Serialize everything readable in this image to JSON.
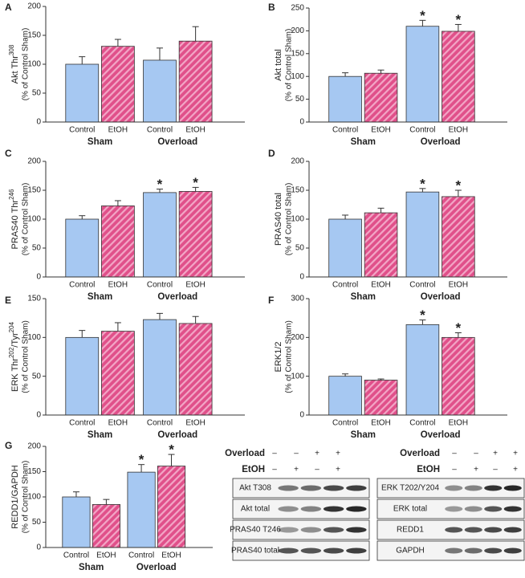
{
  "chart_data": [
    {
      "type": "bar",
      "panel": "A",
      "ylabel": [
        {
          "text": "Akt Thr"
        },
        {
          "text": "308",
          "sup": true
        }
      ],
      "ylabel2": "(% of Control Sham)",
      "categories": [
        "Control",
        "EtOH",
        "Control",
        "EtOH"
      ],
      "groups": [
        "Sham",
        "Overload"
      ],
      "values": [
        100,
        131,
        107,
        140
      ],
      "errors": [
        13,
        12,
        21,
        25
      ],
      "markers": [
        null,
        null,
        null,
        null
      ],
      "colors": [
        "#a6c8f2",
        "#e0508a"
      ],
      "ylim": [
        0,
        200
      ],
      "yticks": [
        0,
        50,
        100,
        150,
        200
      ]
    },
    {
      "type": "bar",
      "panel": "B",
      "ylabel": [
        {
          "text": "Akt  total"
        }
      ],
      "ylabel2": "(% of Control Sham)",
      "categories": [
        "Control",
        "EtOH",
        "Control",
        "EtOH"
      ],
      "groups": [
        "Sham",
        "Overload"
      ],
      "values": [
        100,
        107,
        210,
        199
      ],
      "errors": [
        8,
        7,
        13,
        15
      ],
      "markers": [
        null,
        null,
        "*",
        "*"
      ],
      "colors": [
        "#a6c8f2",
        "#e0508a"
      ],
      "ylim": [
        0,
        250
      ],
      "yticks": [
        0,
        50,
        100,
        150,
        200,
        250
      ]
    },
    {
      "type": "bar",
      "panel": "C",
      "ylabel": [
        {
          "text": "PRAS40 Thr"
        },
        {
          "text": "246",
          "sup": true
        }
      ],
      "ylabel2": "(% of Control Sham)",
      "categories": [
        "Control",
        "EtOH",
        "Control",
        "EtOH"
      ],
      "groups": [
        "Sham",
        "Overload"
      ],
      "values": [
        100,
        123,
        146,
        148
      ],
      "errors": [
        6,
        9,
        6,
        7
      ],
      "markers": [
        null,
        null,
        "*",
        "*"
      ],
      "colors": [
        "#a6c8f2",
        "#e0508a"
      ],
      "ylim": [
        0,
        200
      ],
      "yticks": [
        0,
        50,
        100,
        150,
        200
      ]
    },
    {
      "type": "bar",
      "panel": "D",
      "ylabel": [
        {
          "text": "PRAS40 total"
        }
      ],
      "ylabel2": "(% of Control Sham)",
      "categories": [
        "Control",
        "EtOH",
        "Control",
        "EtOH"
      ],
      "groups": [
        "Sham",
        "Overload"
      ],
      "values": [
        100,
        111,
        147,
        139
      ],
      "errors": [
        7,
        8,
        6,
        11
      ],
      "markers": [
        null,
        null,
        "*",
        "*"
      ],
      "colors": [
        "#a6c8f2",
        "#e0508a"
      ],
      "ylim": [
        0,
        200
      ],
      "yticks": [
        0,
        50,
        100,
        150,
        200
      ]
    },
    {
      "type": "bar",
      "panel": "E",
      "ylabel": [
        {
          "text": "ERK Thr"
        },
        {
          "text": "202",
          "sup": true
        },
        {
          "text": "/Tyr"
        },
        {
          "text": "204",
          "sup": true
        }
      ],
      "ylabel2": "(% of Control Sham)",
      "categories": [
        "Control",
        "EtOH",
        "Control",
        "EtOH"
      ],
      "groups": [
        "Sham",
        "Overload"
      ],
      "values": [
        100,
        108,
        123,
        118
      ],
      "errors": [
        9,
        11,
        8,
        9
      ],
      "markers": [
        null,
        null,
        null,
        null
      ],
      "colors": [
        "#a6c8f2",
        "#e0508a"
      ],
      "ylim": [
        0,
        150
      ],
      "yticks": [
        0,
        50,
        100,
        150
      ]
    },
    {
      "type": "bar",
      "panel": "F",
      "ylabel": [
        {
          "text": "ERK1/2"
        }
      ],
      "ylabel2": "(% of Control Sham)",
      "categories": [
        "Control",
        "EtOH",
        "Control",
        "EtOH"
      ],
      "groups": [
        "Sham",
        "Overload"
      ],
      "values": [
        100,
        90,
        233,
        200
      ],
      "errors": [
        6,
        3,
        12,
        12
      ],
      "markers": [
        null,
        null,
        "*",
        "*"
      ],
      "colors": [
        "#a6c8f2",
        "#e0508a"
      ],
      "ylim": [
        0,
        300
      ],
      "yticks": [
        0,
        100,
        200,
        300
      ]
    },
    {
      "type": "bar",
      "panel": "G",
      "ylabel": [
        {
          "text": "REDD1/GAPDH"
        }
      ],
      "ylabel2": "(% of Control Sham)",
      "categories": [
        "Control",
        "EtOH",
        "Control",
        "EtOH"
      ],
      "groups": [
        "Sham",
        "Overload"
      ],
      "values": [
        100,
        85,
        149,
        161
      ],
      "errors": [
        10,
        10,
        15,
        23
      ],
      "markers": [
        null,
        null,
        "*",
        "*"
      ],
      "colors": [
        "#a6c8f2",
        "#e0508a"
      ],
      "ylim": [
        0,
        200
      ],
      "yticks": [
        0,
        50,
        100,
        150,
        200
      ]
    }
  ],
  "blots": [
    {
      "header": [
        {
          "label": "Overload",
          "marks": [
            "–",
            "–",
            "+",
            "+"
          ]
        },
        {
          "label": "EtOH",
          "marks": [
            "–",
            "+",
            "–",
            "+"
          ]
        }
      ],
      "rows": [
        "Akt T308",
        "Akt  total",
        "PRAS40 T246",
        "PRAS40 total"
      ]
    },
    {
      "header": [
        {
          "label": "Overload",
          "marks": [
            "–",
            "–",
            "+",
            "+"
          ]
        },
        {
          "label": "EtOH",
          "marks": [
            "–",
            "+",
            "–",
            "+"
          ]
        }
      ],
      "rows": [
        "ERK T202/Y204",
        "ERK  total",
        "REDD1",
        "GAPDH"
      ]
    }
  ]
}
